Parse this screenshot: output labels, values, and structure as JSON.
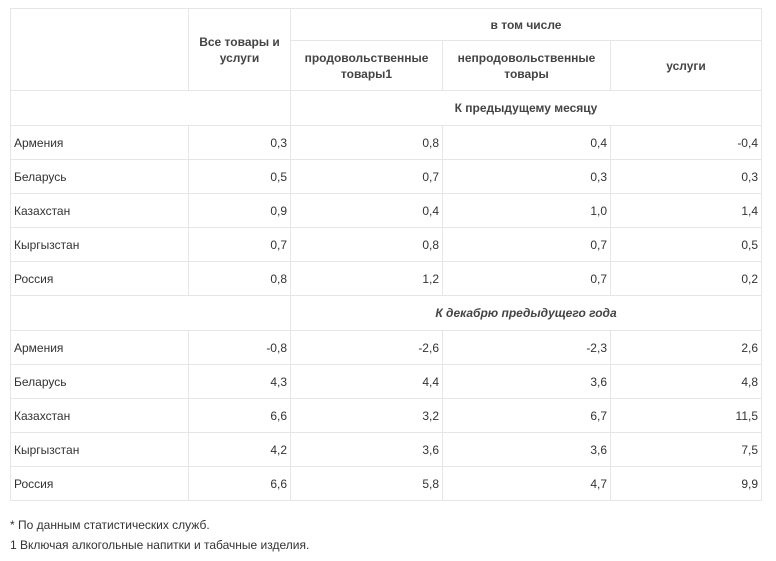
{
  "header": {
    "all": "Все товары и услуги",
    "including": "в том числе",
    "food": "продовольственные товары1",
    "nonfood": "непродовольственные товары",
    "services": "услуги"
  },
  "sections": [
    {
      "title": "К предыдущему месяцу",
      "rows": [
        {
          "country": "Армения",
          "all": "0,3",
          "food": "0,8",
          "nonfood": "0,4",
          "services": "-0,4"
        },
        {
          "country": "Беларусь",
          "all": "0,5",
          "food": "0,7",
          "nonfood": "0,3",
          "services": "0,3"
        },
        {
          "country": "Казахстан",
          "all": "0,9",
          "food": "0,4",
          "nonfood": "1,0",
          "services": "1,4"
        },
        {
          "country": "Кыргызстан",
          "all": "0,7",
          "food": "0,8",
          "nonfood": "0,7",
          "services": "0,5"
        },
        {
          "country": "Россия",
          "all": "0,8",
          "food": "1,2",
          "nonfood": "0,7",
          "services": "0,2"
        }
      ]
    },
    {
      "title": "К декабрю предыдущего года",
      "rows": [
        {
          "country": "Армения",
          "all": "-0,8",
          "food": "-2,6",
          "nonfood": "-2,3",
          "services": "2,6"
        },
        {
          "country": "Беларусь",
          "all": "4,3",
          "food": "4,4",
          "nonfood": "3,6",
          "services": "4,8"
        },
        {
          "country": "Казахстан",
          "all": "6,6",
          "food": "3,2",
          "nonfood": "6,7",
          "services": "11,5"
        },
        {
          "country": "Кыргызстан",
          "all": "4,2",
          "food": "3,6",
          "nonfood": "3,6",
          "services": "7,5"
        },
        {
          "country": "Россия",
          "all": "6,6",
          "food": "5,8",
          "nonfood": "4,7",
          "services": "9,9"
        }
      ]
    }
  ],
  "footnotes": [
    "* По данным статистических служб.",
    "1 Включая алкогольные напитки и табачные изделия."
  ]
}
